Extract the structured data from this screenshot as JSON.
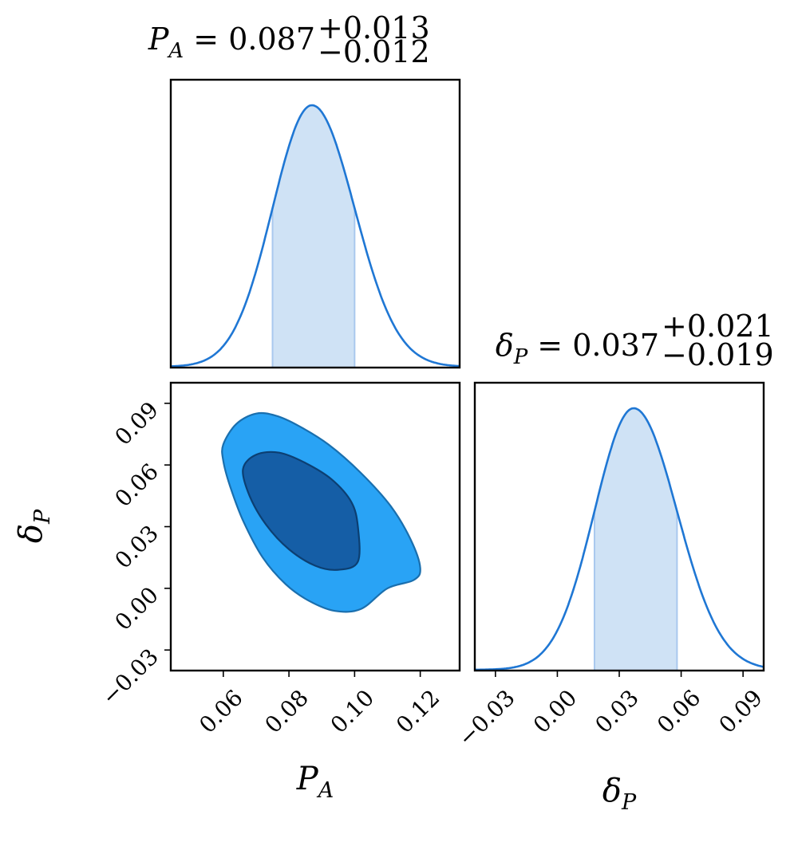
{
  "chart_data": [
    {
      "type": "area",
      "panel": "marginal-PA",
      "title": {
        "symbol": "P",
        "subscript": "A",
        "median": "0.087",
        "plus": "+0.013",
        "minus": "−0.012"
      },
      "median": 0.087,
      "err_plus": 0.013,
      "err_minus": 0.012,
      "shaded_interval": [
        0.075,
        0.1
      ],
      "xlim": [
        0.044,
        0.132
      ],
      "color": "#1f77d4",
      "shade_color": "#cfe2f5"
    },
    {
      "type": "area",
      "panel": "marginal-deltaP",
      "title": {
        "symbol": "δ",
        "subscript": "P",
        "median": "0.037",
        "plus": "+0.021",
        "minus": "−0.019"
      },
      "median": 0.037,
      "err_plus": 0.021,
      "err_minus": 0.019,
      "shaded_interval": [
        0.018,
        0.058
      ],
      "xlim": [
        -0.04,
        0.1
      ],
      "xticks": [
        "−0.03",
        "0.00",
        "0.03",
        "0.06",
        "0.09"
      ],
      "xtick_values": [
        -0.03,
        0.0,
        0.03,
        0.06,
        0.09
      ],
      "xlabel": {
        "symbol": "δ",
        "subscript": "P"
      },
      "color": "#1f77d4",
      "shade_color": "#cfe2f5"
    },
    {
      "type": "contour",
      "panel": "joint-PA-deltaP",
      "xlim": [
        0.044,
        0.132
      ],
      "ylim": [
        -0.04,
        0.1
      ],
      "xticks": [
        "0.06",
        "0.08",
        "0.10",
        "0.12"
      ],
      "xtick_values": [
        0.06,
        0.08,
        0.1,
        0.12
      ],
      "yticks": [
        "−0.03",
        "0.00",
        "0.03",
        "0.06",
        "0.09"
      ],
      "ytick_values": [
        -0.03,
        0.0,
        0.03,
        0.06,
        0.09
      ],
      "xlabel": {
        "symbol": "P",
        "subscript": "A"
      },
      "ylabel": {
        "symbol": "δ",
        "subscript": "P"
      },
      "levels": [
        {
          "name": "outer",
          "color": "#29a3f5",
          "edge": "#1a6fae",
          "points": [
            [
              0.06,
              0.07
            ],
            [
              0.064,
              0.08
            ],
            [
              0.07,
              0.085
            ],
            [
              0.076,
              0.084
            ],
            [
              0.083,
              0.079
            ],
            [
              0.092,
              0.07
            ],
            [
              0.102,
              0.056
            ],
            [
              0.111,
              0.04
            ],
            [
              0.117,
              0.024
            ],
            [
              0.12,
              0.01
            ],
            [
              0.118,
              0.004
            ],
            [
              0.11,
              0.0
            ],
            [
              0.102,
              -0.01
            ],
            [
              0.094,
              -0.011
            ],
            [
              0.086,
              -0.006
            ],
            [
              0.079,
              0.002
            ],
            [
              0.072,
              0.015
            ],
            [
              0.066,
              0.033
            ],
            [
              0.062,
              0.05
            ],
            [
              0.06,
              0.062
            ]
          ]
        },
        {
          "name": "inner",
          "color": "#155ea6",
          "edge": "#0c3f72",
          "points": [
            [
              0.066,
              0.058
            ],
            [
              0.07,
              0.065
            ],
            [
              0.077,
              0.066
            ],
            [
              0.085,
              0.061
            ],
            [
              0.093,
              0.053
            ],
            [
              0.099,
              0.042
            ],
            [
              0.101,
              0.03
            ],
            [
              0.101,
              0.013
            ],
            [
              0.095,
              0.009
            ],
            [
              0.088,
              0.011
            ],
            [
              0.08,
              0.019
            ],
            [
              0.073,
              0.031
            ],
            [
              0.068,
              0.045
            ]
          ]
        }
      ]
    }
  ]
}
